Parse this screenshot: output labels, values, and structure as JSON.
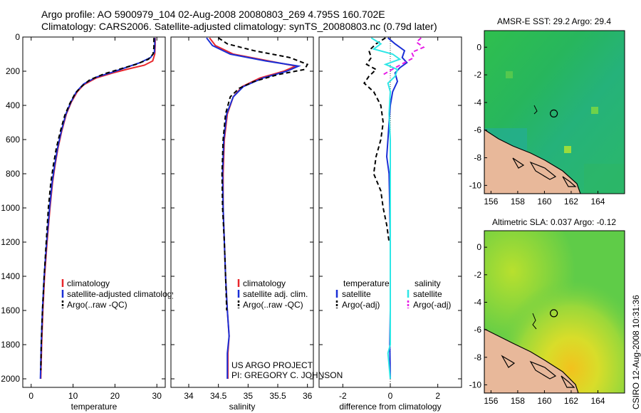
{
  "header": {
    "line1": "Argo profile: AO 5900979_104 02-Aug-2008 20080803_269 4.795S 160.702E",
    "line2": "Climatology: CARS2006. Satellite-adjusted climatology: synTS_20080803.nc (0.79d later)"
  },
  "credit": {
    "line1": "US ARGO PROJECT",
    "line2": "PI: GREGORY C. JOHNSON"
  },
  "stamp": "CSIRO 12-Aug-2008 10:31:36",
  "colors": {
    "climatology": "#e8262b",
    "satellite": "#1a2fd6",
    "argo": "#000000",
    "satellite_salinity": "#2ee6e6",
    "argo_salinity": "#e61ee6",
    "land": "#e8b89a",
    "map_frame": "#000000"
  },
  "chart_data": [
    {
      "id": "temperature",
      "type": "line",
      "xlabel": "temperature",
      "ylabel": "",
      "xlim": [
        -2,
        32
      ],
      "ylim": [
        2050,
        0
      ],
      "xticks": [
        0,
        10,
        20,
        30
      ],
      "yticks": [
        0,
        200,
        400,
        600,
        800,
        1000,
        1200,
        1400,
        1600,
        1800,
        2000
      ],
      "legend": [
        "climatology",
        "satellite-adjusted climatology",
        "Argo(..raw -QC)"
      ],
      "legend_position": "lower-right",
      "series": [
        {
          "name": "climatology",
          "color_key": "climatology",
          "points": [
            [
              29.6,
              5
            ],
            [
              29.6,
              50
            ],
            [
              29.5,
              100
            ],
            [
              29.0,
              140
            ],
            [
              27.0,
              165
            ],
            [
              23.5,
              185
            ],
            [
              19.5,
              210
            ],
            [
              15.5,
              240
            ],
            [
              12.5,
              280
            ],
            [
              11.0,
              320
            ],
            [
              9.6,
              380
            ],
            [
              8.4,
              450
            ],
            [
              7.3,
              550
            ],
            [
              6.4,
              650
            ],
            [
              5.7,
              750
            ],
            [
              5.1,
              850
            ],
            [
              4.5,
              1000
            ],
            [
              3.8,
              1200
            ],
            [
              3.2,
              1400
            ],
            [
              2.8,
              1600
            ],
            [
              2.5,
              1800
            ],
            [
              2.3,
              2000
            ]
          ]
        },
        {
          "name": "satellite-adjusted climatology",
          "color_key": "satellite",
          "points": [
            [
              29.5,
              5
            ],
            [
              29.5,
              50
            ],
            [
              29.4,
              90
            ],
            [
              28.5,
              120
            ],
            [
              26.0,
              150
            ],
            [
              23.0,
              175
            ],
            [
              19.5,
              205
            ],
            [
              15.5,
              235
            ],
            [
              12.5,
              275
            ],
            [
              10.8,
              320
            ],
            [
              9.5,
              380
            ],
            [
              8.3,
              450
            ],
            [
              7.2,
              550
            ],
            [
              6.3,
              650
            ],
            [
              5.6,
              750
            ],
            [
              5.0,
              850
            ],
            [
              4.4,
              1000
            ],
            [
              3.7,
              1200
            ],
            [
              3.1,
              1400
            ],
            [
              2.7,
              1600
            ],
            [
              2.4,
              1800
            ],
            [
              2.2,
              2000
            ]
          ]
        },
        {
          "name": "Argo(..raw -QC)",
          "color_key": "argo",
          "dashed": true,
          "points": [
            [
              29.3,
              5
            ],
            [
              29.3,
              60
            ],
            [
              29.1,
              100
            ],
            [
              28.0,
              130
            ],
            [
              25.0,
              160
            ],
            [
              21.5,
              185
            ],
            [
              17.5,
              215
            ],
            [
              14.0,
              250
            ],
            [
              12.0,
              290
            ],
            [
              10.5,
              330
            ],
            [
              9.2,
              390
            ],
            [
              8.0,
              460
            ],
            [
              7.0,
              550
            ],
            [
              6.0,
              650
            ],
            [
              5.3,
              750
            ],
            [
              4.7,
              850
            ],
            [
              4.1,
              1000
            ],
            [
              3.6,
              1200
            ],
            [
              3.1,
              1400
            ],
            [
              2.7,
              1600
            ],
            [
              2.4,
              1800
            ],
            [
              2.3,
              1950
            ]
          ]
        }
      ]
    },
    {
      "id": "salinity",
      "type": "line",
      "xlabel": "salinity",
      "ylabel": "",
      "xlim": [
        33.7,
        36.1
      ],
      "ylim": [
        2050,
        0
      ],
      "xticks": [
        34,
        34.5,
        35,
        35.5,
        36
      ],
      "yticks": [
        0,
        200,
        400,
        600,
        800,
        1000,
        1200,
        1400,
        1600,
        1800,
        2000
      ],
      "legend": [
        "climatology",
        "satellite adj. clim.",
        "Argo(..raw -QC)"
      ],
      "legend_position": "lower-right",
      "series": [
        {
          "name": "climatology",
          "color_key": "climatology",
          "points": [
            [
              34.35,
              5
            ],
            [
              34.45,
              50
            ],
            [
              34.75,
              100
            ],
            [
              35.35,
              140
            ],
            [
              35.8,
              170
            ],
            [
              35.6,
              200
            ],
            [
              35.2,
              240
            ],
            [
              34.9,
              290
            ],
            [
              34.75,
              350
            ],
            [
              34.65,
              450
            ],
            [
              34.6,
              600
            ],
            [
              34.58,
              800
            ],
            [
              34.58,
              1000
            ],
            [
              34.6,
              1200
            ],
            [
              34.62,
              1400
            ],
            [
              34.65,
              1600
            ],
            [
              34.68,
              1750
            ],
            [
              34.66,
              1850
            ],
            [
              34.66,
              2000
            ]
          ]
        },
        {
          "name": "satellite adj. clim.",
          "color_key": "satellite",
          "points": [
            [
              34.3,
              5
            ],
            [
              34.4,
              50
            ],
            [
              34.7,
              100
            ],
            [
              35.3,
              140
            ],
            [
              35.85,
              170
            ],
            [
              35.65,
              200
            ],
            [
              35.25,
              240
            ],
            [
              34.92,
              290
            ],
            [
              34.75,
              350
            ],
            [
              34.64,
              450
            ],
            [
              34.59,
              600
            ],
            [
              34.57,
              800
            ],
            [
              34.58,
              1000
            ],
            [
              34.6,
              1200
            ],
            [
              34.62,
              1400
            ],
            [
              34.65,
              1600
            ],
            [
              34.68,
              1750
            ],
            [
              34.65,
              1850
            ],
            [
              34.65,
              2000
            ]
          ]
        },
        {
          "name": "Argo(..raw -QC)",
          "color_key": "argo",
          "dashed": true,
          "points": [
            [
              34.5,
              5
            ],
            [
              34.65,
              40
            ],
            [
              35.1,
              80
            ],
            [
              35.7,
              120
            ],
            [
              36.0,
              160
            ],
            [
              35.95,
              190
            ],
            [
              35.5,
              220
            ],
            [
              35.1,
              260
            ],
            [
              34.85,
              300
            ],
            [
              34.7,
              350
            ],
            [
              34.62,
              450
            ],
            [
              34.58,
              600
            ],
            [
              34.56,
              800
            ],
            [
              34.57,
              1000
            ],
            [
              34.6,
              1200
            ],
            [
              34.62,
              1400
            ],
            [
              34.64,
              1600
            ]
          ]
        }
      ]
    },
    {
      "id": "difference",
      "type": "line",
      "xlabel": "difference from climatology",
      "ylabel": "",
      "xlim": [
        -3,
        3
      ],
      "ylim": [
        2050,
        0
      ],
      "xticks": [
        -2,
        0,
        2
      ],
      "yticks": [
        0,
        200,
        400,
        600,
        800,
        1000,
        1200,
        1400,
        1600,
        1800,
        2000
      ],
      "legend": [
        "temperature",
        "satellite",
        "Argo(-adj)",
        "salinity",
        "satellite",
        "Argo(-adj)"
      ],
      "legend_position": "bottom",
      "series": [
        {
          "name": "temperature satellite",
          "color_key": "satellite",
          "points": [
            [
              -0.1,
              5
            ],
            [
              0.2,
              40
            ],
            [
              0.6,
              80
            ],
            [
              0.5,
              120
            ],
            [
              0.7,
              150
            ],
            [
              0.4,
              180
            ],
            [
              0.2,
              210
            ],
            [
              0.3,
              260
            ],
            [
              0.1,
              320
            ],
            [
              0.0,
              400
            ],
            [
              -0.05,
              500
            ],
            [
              -0.1,
              600
            ],
            [
              -0.15,
              700
            ],
            [
              -0.05,
              800
            ],
            [
              -0.02,
              1000
            ],
            [
              0.0,
              1200
            ],
            [
              0.0,
              1400
            ],
            [
              0.0,
              1600
            ],
            [
              -0.02,
              1800
            ],
            [
              0.0,
              2000
            ]
          ]
        },
        {
          "name": "temperature Argo(-adj)",
          "color_key": "argo",
          "dashed": true,
          "points": [
            [
              -0.2,
              5
            ],
            [
              -0.6,
              40
            ],
            [
              -0.9,
              80
            ],
            [
              -0.8,
              120
            ],
            [
              -1.0,
              160
            ],
            [
              -0.6,
              190
            ],
            [
              -0.9,
              230
            ],
            [
              -1.1,
              270
            ],
            [
              -0.7,
              320
            ],
            [
              -0.4,
              400
            ],
            [
              -0.3,
              500
            ],
            [
              -0.4,
              600
            ],
            [
              -0.6,
              700
            ],
            [
              -0.7,
              800
            ],
            [
              -0.4,
              900
            ],
            [
              -0.3,
              1000
            ],
            [
              -0.15,
              1100
            ],
            [
              -0.05,
              1200
            ]
          ]
        },
        {
          "name": "salinity satellite",
          "color_key": "satellite_salinity",
          "points": [
            [
              -0.8,
              5
            ],
            [
              -0.4,
              40
            ],
            [
              -0.7,
              70
            ],
            [
              0.1,
              100
            ],
            [
              0.4,
              130
            ],
            [
              -0.2,
              160
            ],
            [
              0.3,
              190
            ],
            [
              0.2,
              230
            ],
            [
              -0.1,
              270
            ],
            [
              0.0,
              320
            ],
            [
              -0.05,
              450
            ],
            [
              0.0,
              600
            ],
            [
              0.0,
              800
            ],
            [
              0.0,
              1000
            ],
            [
              0.0,
              1200
            ],
            [
              0.0,
              1400
            ],
            [
              0.0,
              1600
            ],
            [
              0.0,
              1800
            ],
            [
              -0.1,
              1850
            ],
            [
              0.0,
              2000
            ]
          ]
        },
        {
          "name": "salinity Argo(-adj)",
          "color_key": "argo_salinity",
          "dashed": true,
          "points": [
            [
              1.3,
              5
            ],
            [
              1.1,
              30
            ],
            [
              1.4,
              60
            ],
            [
              0.9,
              90
            ],
            [
              1.0,
              120
            ],
            [
              0.6,
              150
            ],
            [
              0.2,
              180
            ],
            [
              -0.3,
              220
            ]
          ]
        }
      ]
    }
  ],
  "maps": [
    {
      "id": "sst",
      "title": "AMSR-E SST: 29.2 Argo: 29.4",
      "xticks": [
        156,
        158,
        160,
        162,
        164
      ],
      "yticks": [
        0,
        -2,
        -4,
        -6,
        -8,
        -10
      ],
      "xlim": [
        155.5,
        166
      ],
      "ylim": [
        -10.6,
        1.2
      ],
      "marker": [
        160.7,
        -4.8
      ]
    },
    {
      "id": "sla",
      "title": "Altimetric SLA: 0.037 Argo: -0.12",
      "xticks": [
        156,
        158,
        160,
        162,
        164
      ],
      "yticks": [
        0,
        -2,
        -4,
        -6,
        -8,
        -10
      ],
      "xlim": [
        155.5,
        166
      ],
      "ylim": [
        -10.6,
        1.2
      ],
      "marker": [
        160.7,
        -4.8
      ]
    }
  ]
}
